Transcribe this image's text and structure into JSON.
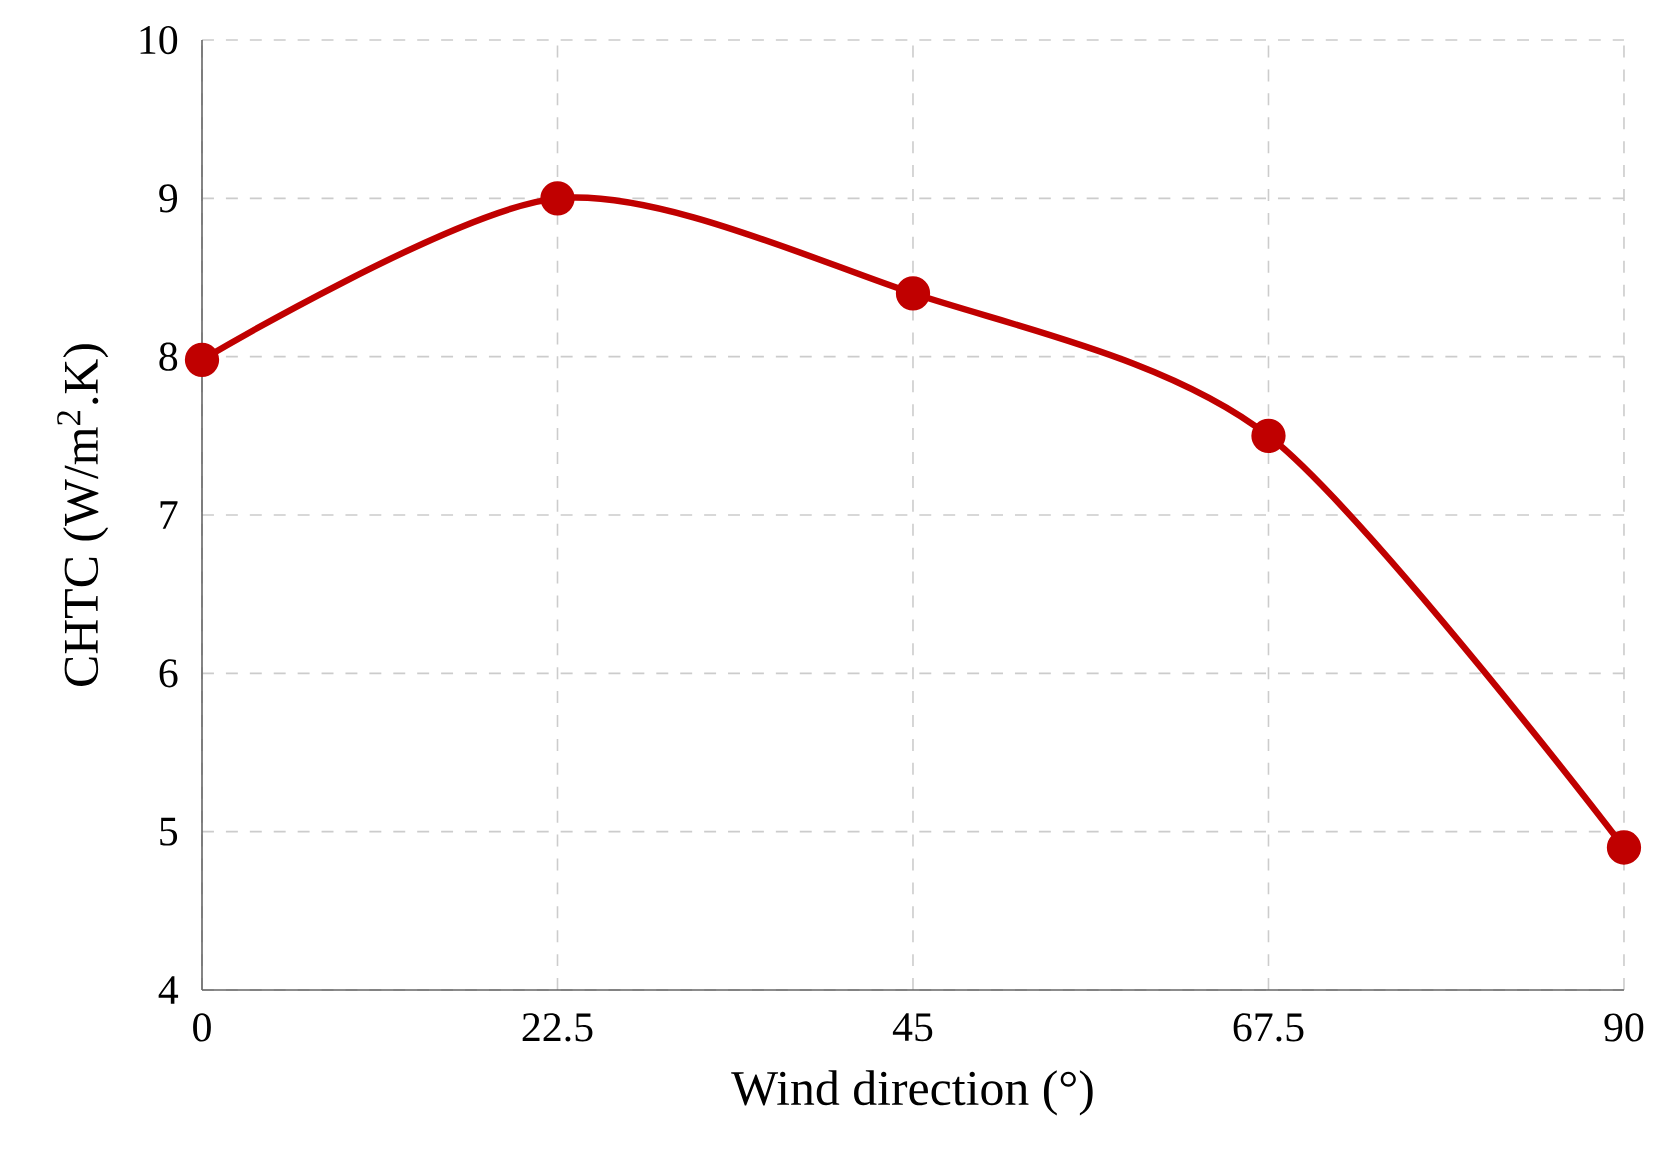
{
  "chart_data": {
    "type": "line",
    "xlabel": "Wind direction (°)",
    "ylabel": "CHTC (W/m$^{2}$.K)",
    "x": [
      0,
      22.5,
      45,
      67.5,
      90
    ],
    "series": [
      {
        "color": "#c00000",
        "values": [
          7.98,
          9.0,
          8.4,
          7.5,
          4.9
        ]
      }
    ],
    "xlim": [
      0,
      90
    ],
    "xticks": [
      0,
      22.5,
      45,
      67.5,
      90
    ],
    "ylim": [
      4,
      10
    ],
    "yticks": [
      4,
      5,
      6,
      7,
      8,
      9,
      10
    ],
    "grid": true,
    "marker": "circle",
    "line_style": "solid"
  }
}
